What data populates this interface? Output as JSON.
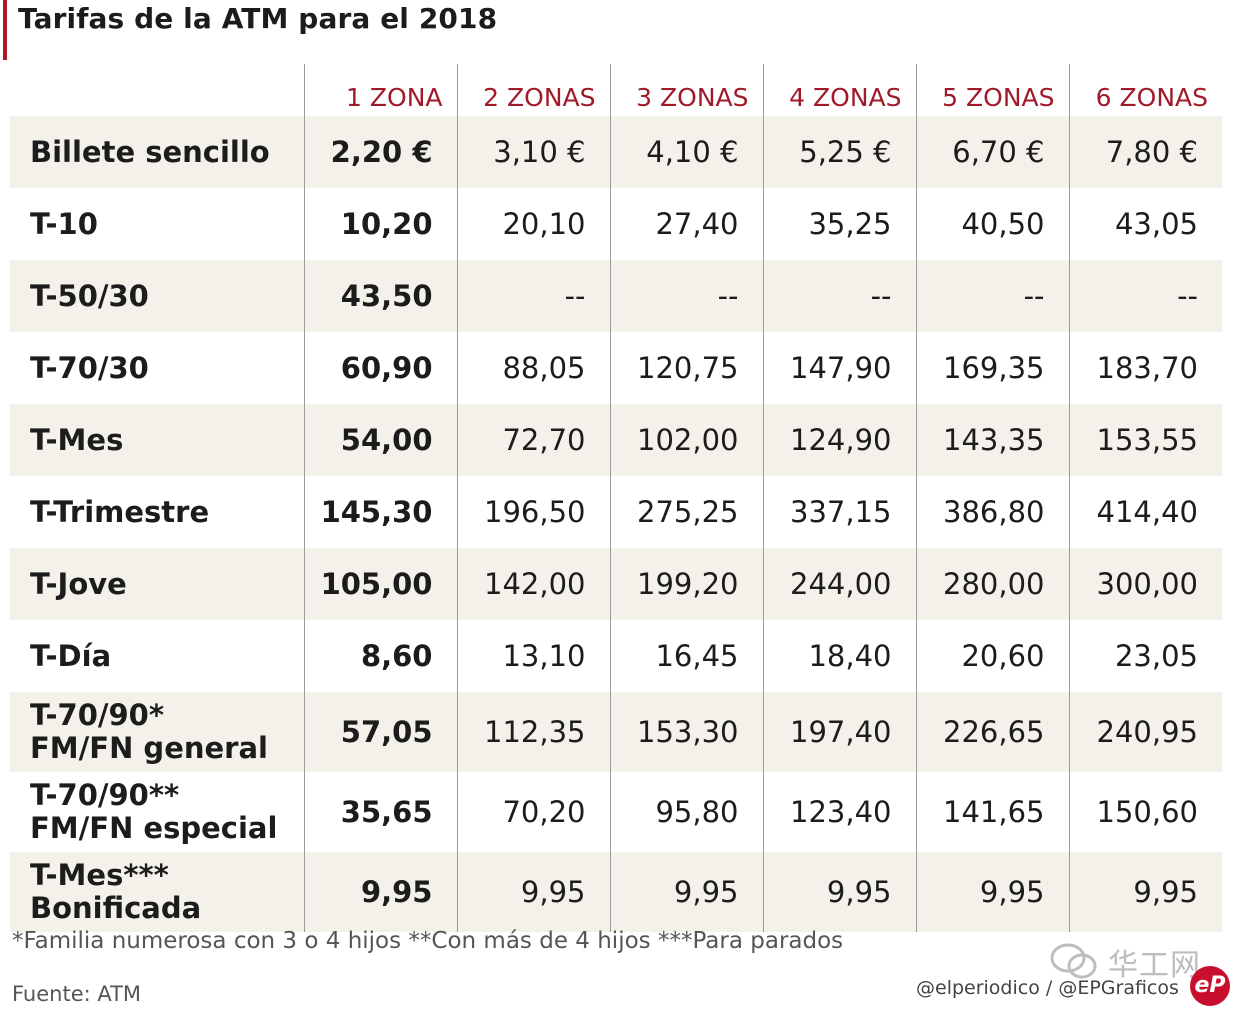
{
  "title": "Tarifas de la ATM para el 2018",
  "headers": [
    "1 ZONA",
    "2 ZONAS",
    "3 ZONAS",
    "4 ZONAS",
    "5 ZONAS",
    "6 ZONAS"
  ],
  "rows": [
    {
      "label": [
        "Billete sencillo"
      ],
      "values": [
        "2,20 €",
        "3,10 €",
        "4,10 €",
        "5,25 €",
        "6,70 €",
        "7,80 €"
      ]
    },
    {
      "label": [
        "T-10"
      ],
      "values": [
        "10,20",
        "20,10",
        "27,40",
        "35,25",
        "40,50",
        "43,05"
      ]
    },
    {
      "label": [
        "T-50/30"
      ],
      "values": [
        "43,50",
        "--",
        "--",
        "--",
        "--",
        "--"
      ]
    },
    {
      "label": [
        "T-70/30"
      ],
      "values": [
        "60,90",
        "88,05",
        "120,75",
        "147,90",
        "169,35",
        "183,70"
      ]
    },
    {
      "label": [
        "T-Mes"
      ],
      "values": [
        "54,00",
        "72,70",
        "102,00",
        "124,90",
        "143,35",
        "153,55"
      ]
    },
    {
      "label": [
        "T-Trimestre"
      ],
      "values": [
        "145,30",
        "196,50",
        "275,25",
        "337,15",
        "386,80",
        "414,40"
      ]
    },
    {
      "label": [
        "T-Jove"
      ],
      "values": [
        "105,00",
        "142,00",
        "199,20",
        "244,00",
        "280,00",
        "300,00"
      ]
    },
    {
      "label": [
        "T-Día"
      ],
      "values": [
        "8,60",
        "13,10",
        "16,45",
        "18,40",
        "20,60",
        "23,05"
      ]
    },
    {
      "label": [
        "T-70/90*",
        "FM/FN general"
      ],
      "values": [
        "57,05",
        "112,35",
        "153,30",
        "197,40",
        "226,65",
        "240,95"
      ]
    },
    {
      "label": [
        "T-70/90**",
        "FM/FN especial"
      ],
      "values": [
        "35,65",
        "70,20",
        "95,80",
        "123,40",
        "141,65",
        "150,60"
      ]
    },
    {
      "label": [
        "T-Mes***",
        "Bonificada"
      ],
      "values": [
        "9,95",
        "9,95",
        "9,95",
        "9,95",
        "9,95",
        "9,95"
      ]
    }
  ],
  "footnote": "*Familia numerosa con 3 o 4 hijos  **Con más de 4 hijos  ***Para parados",
  "source": "Fuente: ATM",
  "credit": "@elperiodico / @EPGraficos",
  "watermark": "华工网",
  "logo_text": "eP",
  "colors": {
    "accent": "#a11a2a",
    "shade": "#f3f1e9",
    "logo": "#c8102e"
  }
}
